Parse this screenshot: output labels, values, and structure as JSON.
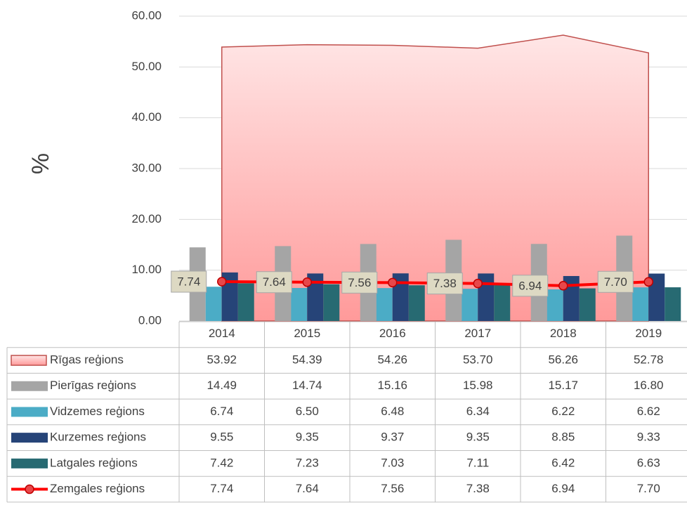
{
  "chart_data": {
    "type": "combo",
    "y_label": "%",
    "categories": [
      "2014",
      "2015",
      "2016",
      "2017",
      "2018",
      "2019"
    ],
    "ylim": [
      0,
      60
    ],
    "yticks": [
      {
        "value": 0,
        "label": "0.00"
      },
      {
        "value": 10,
        "label": "10.00"
      },
      {
        "value": 20,
        "label": "20.00"
      },
      {
        "value": 30,
        "label": "30.00"
      },
      {
        "value": 40,
        "label": "40.00"
      },
      {
        "value": 50,
        "label": "50.00"
      },
      {
        "value": 60,
        "label": "60.00"
      }
    ],
    "grid": true,
    "series": [
      {
        "name": "Rīgas reģions",
        "type": "area",
        "color": "#c0504d",
        "values": [
          53.92,
          54.39,
          54.26,
          53.7,
          56.26,
          52.78
        ],
        "value_labels": [
          "53.92",
          "54.39",
          "54.26",
          "53.70",
          "56.26",
          "52.78"
        ]
      },
      {
        "name": "Pierīgas reģions",
        "type": "bar",
        "color": "#a5a5a5",
        "values": [
          14.49,
          14.74,
          15.16,
          15.98,
          15.17,
          16.8
        ],
        "value_labels": [
          "14.49",
          "14.74",
          "15.16",
          "15.98",
          "15.17",
          "16.80"
        ]
      },
      {
        "name": "Vidzemes reģions",
        "type": "bar",
        "color": "#4bacc6",
        "values": [
          6.74,
          6.5,
          6.48,
          6.34,
          6.22,
          6.62
        ],
        "value_labels": [
          "6.74",
          "6.50",
          "6.48",
          "6.34",
          "6.22",
          "6.62"
        ]
      },
      {
        "name": "Kurzemes reģions",
        "type": "bar",
        "color": "#264478",
        "values": [
          9.55,
          9.35,
          9.37,
          9.35,
          8.85,
          9.33
        ],
        "value_labels": [
          "9.55",
          "9.35",
          "9.37",
          "9.35",
          "8.85",
          "9.33"
        ]
      },
      {
        "name": "Latgales reģions",
        "type": "bar",
        "color": "#276a72",
        "values": [
          7.42,
          7.23,
          7.03,
          7.11,
          6.42,
          6.63
        ],
        "value_labels": [
          "7.42",
          "7.23",
          "7.03",
          "7.11",
          "6.42",
          "6.63"
        ]
      },
      {
        "name": "Zemgales reģions",
        "type": "line",
        "color": "#ff0000",
        "values": [
          7.74,
          7.64,
          7.56,
          7.38,
          6.94,
          7.7
        ],
        "value_labels": [
          "7.74",
          "7.64",
          "7.56",
          "7.38",
          "6.94",
          "7.70"
        ]
      }
    ]
  }
}
